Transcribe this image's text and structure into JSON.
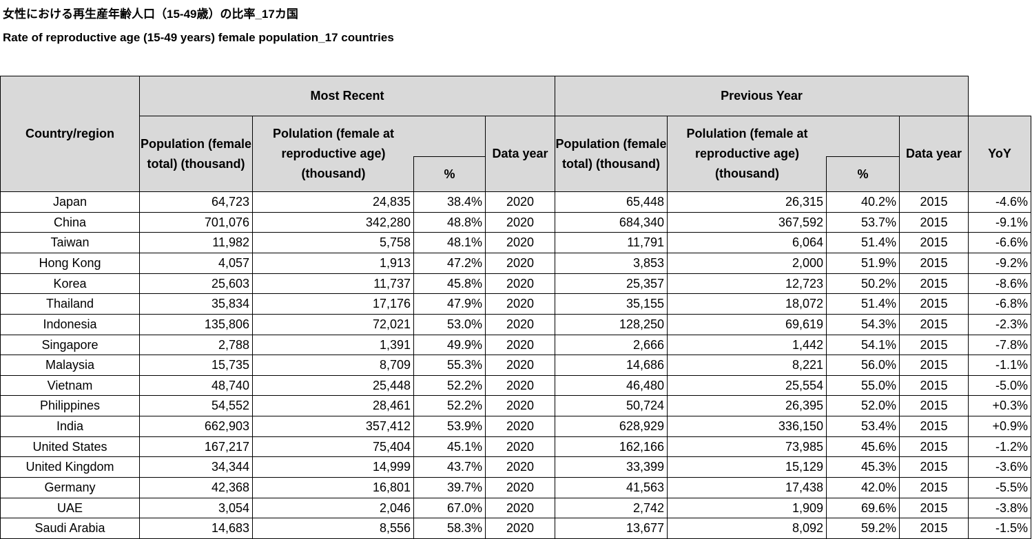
{
  "header": {
    "title": "女性における再生産年齢人口（15-49歳）の比率_17カ国",
    "subtitle": "Rate of reproductive age (15-49 years) female population_17 countries"
  },
  "table": {
    "country_header": "Country/region",
    "group_headers": [
      "Most Recent",
      "Previous Year"
    ],
    "sub_headers": [
      [
        "Population (female total) (thousand)",
        "Polulation (female at reproductive age) (thousand)",
        "%",
        "Data year"
      ],
      [
        "Population (female total) (thousand)",
        "Polulation (female at reproductive age) (thousand)",
        "%",
        "Data year"
      ]
    ],
    "yoy_header": "YoY",
    "rows": [
      [
        "Japan",
        "64,723",
        "24,835",
        "38.4%",
        "2020",
        "65,448",
        "26,315",
        "40.2%",
        "2015",
        "-4.6%"
      ],
      [
        "China",
        "701,076",
        "342,280",
        "48.8%",
        "2020",
        "684,340",
        "367,592",
        "53.7%",
        "2015",
        "-9.1%"
      ],
      [
        "Taiwan",
        "11,982",
        "5,758",
        "48.1%",
        "2020",
        "11,791",
        "6,064",
        "51.4%",
        "2015",
        "-6.6%"
      ],
      [
        "Hong Kong",
        "4,057",
        "1,913",
        "47.2%",
        "2020",
        "3,853",
        "2,000",
        "51.9%",
        "2015",
        "-9.2%"
      ],
      [
        "Korea",
        "25,603",
        "11,737",
        "45.8%",
        "2020",
        "25,357",
        "12,723",
        "50.2%",
        "2015",
        "-8.6%"
      ],
      [
        "Thailand",
        "35,834",
        "17,176",
        "47.9%",
        "2020",
        "35,155",
        "18,072",
        "51.4%",
        "2015",
        "-6.8%"
      ],
      [
        "Indonesia",
        "135,806",
        "72,021",
        "53.0%",
        "2020",
        "128,250",
        "69,619",
        "54.3%",
        "2015",
        "-2.3%"
      ],
      [
        "Singapore",
        "2,788",
        "1,391",
        "49.9%",
        "2020",
        "2,666",
        "1,442",
        "54.1%",
        "2015",
        "-7.8%"
      ],
      [
        "Malaysia",
        "15,735",
        "8,709",
        "55.3%",
        "2020",
        "14,686",
        "8,221",
        "56.0%",
        "2015",
        "-1.1%"
      ],
      [
        "Vietnam",
        "48,740",
        "25,448",
        "52.2%",
        "2020",
        "46,480",
        "25,554",
        "55.0%",
        "2015",
        "-5.0%"
      ],
      [
        "Philippines",
        "54,552",
        "28,461",
        "52.2%",
        "2020",
        "50,724",
        "26,395",
        "52.0%",
        "2015",
        "+0.3%"
      ],
      [
        "India",
        "662,903",
        "357,412",
        "53.9%",
        "2020",
        "628,929",
        "336,150",
        "53.4%",
        "2015",
        "+0.9%"
      ],
      [
        "United States",
        "167,217",
        "75,404",
        "45.1%",
        "2020",
        "162,166",
        "73,985",
        "45.6%",
        "2015",
        "-1.2%"
      ],
      [
        "United Kingdom",
        "34,344",
        "14,999",
        "43.7%",
        "2020",
        "33,399",
        "15,129",
        "45.3%",
        "2015",
        "-3.6%"
      ],
      [
        "Germany",
        "42,368",
        "16,801",
        "39.7%",
        "2020",
        "41,563",
        "17,438",
        "42.0%",
        "2015",
        "-5.5%"
      ],
      [
        "UAE",
        "3,054",
        "2,046",
        "67.0%",
        "2020",
        "2,742",
        "1,909",
        "69.6%",
        "2015",
        "-3.8%"
      ],
      [
        "Saudi Arabia",
        "14,683",
        "8,556",
        "58.3%",
        "2020",
        "13,677",
        "8,092",
        "59.2%",
        "2015",
        "-1.5%"
      ]
    ]
  }
}
